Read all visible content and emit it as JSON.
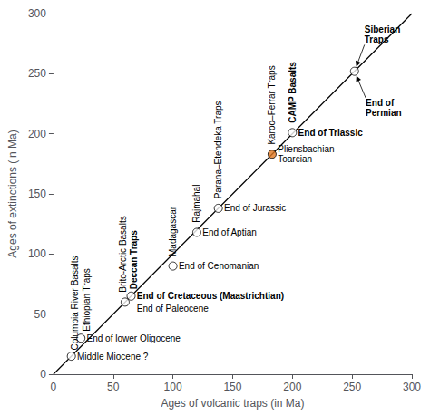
{
  "chart_data": {
    "type": "scatter",
    "xlabel": "Ages of volcanic traps (in Ma)",
    "ylabel": "Ages of extinctions (in Ma)",
    "x": [
      15,
      23,
      60,
      65,
      100,
      120,
      138,
      183,
      200,
      252
    ],
    "y": [
      15,
      30,
      60,
      65,
      90,
      118,
      138,
      183,
      201,
      252
    ],
    "colors": [
      "white",
      "white",
      "white",
      "white",
      "white",
      "white",
      "white",
      "#e07820",
      "white",
      "white"
    ],
    "marker": "circle",
    "xlim": [
      0,
      300
    ],
    "ylim": [
      0,
      300
    ],
    "xticks": [
      0,
      50,
      100,
      150,
      200,
      250,
      300
    ],
    "yticks": [
      0,
      50,
      100,
      150,
      200,
      250,
      300
    ],
    "grid": false,
    "reference_line": {
      "x": [
        0,
        300
      ],
      "y": [
        0,
        300
      ],
      "color": "black"
    },
    "trap_labels": [
      {
        "x": 18,
        "y": 20,
        "text": "Columbia River Basalts",
        "bold": false
      },
      {
        "x": 28,
        "y": 20,
        "text": "Ethiopian Traps",
        "bold": false
      },
      {
        "x": 60,
        "y": 68,
        "text": "Brito-Arctic Basalts",
        "bold": false
      },
      {
        "x": 65,
        "y": 68,
        "text": "Deccan Traps",
        "bold": true
      },
      {
        "x": 100,
        "y": 98,
        "text": "Madagascar",
        "bold": false
      },
      {
        "x": 120,
        "y": 126,
        "text": "Rajmahal",
        "bold": false
      },
      {
        "x": 138,
        "y": 146,
        "text": "Parana–Etendeka Traps",
        "bold": false
      },
      {
        "x": 183,
        "y": 191,
        "text": "Karoo–Ferrar Traps",
        "bold": false
      },
      {
        "x": 200,
        "y": 209,
        "text": "CAMP Basalts",
        "bold": true
      }
    ],
    "extinction_labels": [
      {
        "x": 16,
        "y": 15,
        "text": "Middle Miocene ?",
        "bold": false
      },
      {
        "x": 24,
        "y": 30,
        "text": "End of lower Oligocene",
        "bold": false
      },
      {
        "x": 66,
        "y": 65,
        "text": "End of Cretaceous (Maastrichtian)",
        "bold": true
      },
      {
        "x": 66,
        "y": 55,
        "text": "End of Paleocene",
        "bold": false
      },
      {
        "x": 101,
        "y": 90,
        "text": "End of Cenomanian",
        "bold": false
      },
      {
        "x": 121,
        "y": 118,
        "text": "End of Aptian",
        "bold": false
      },
      {
        "x": 139,
        "y": 138,
        "text": "End of Jurassic",
        "bold": false
      },
      {
        "x": 184,
        "y": 183,
        "text": "Pliensbachian–\nToarcian",
        "bold": false
      },
      {
        "x": 201,
        "y": 201,
        "text": "End of Triassic",
        "bold": true
      }
    ],
    "arrow_labels": [
      {
        "x": 252,
        "y": 262,
        "text": "Siberian\nTraps",
        "bold": true,
        "arrow_to": [
          252,
          252
        ]
      },
      {
        "x": 253,
        "y": 242,
        "text": "End of\nPermian",
        "bold": true,
        "arrow_to": [
          252,
          252
        ]
      }
    ]
  }
}
